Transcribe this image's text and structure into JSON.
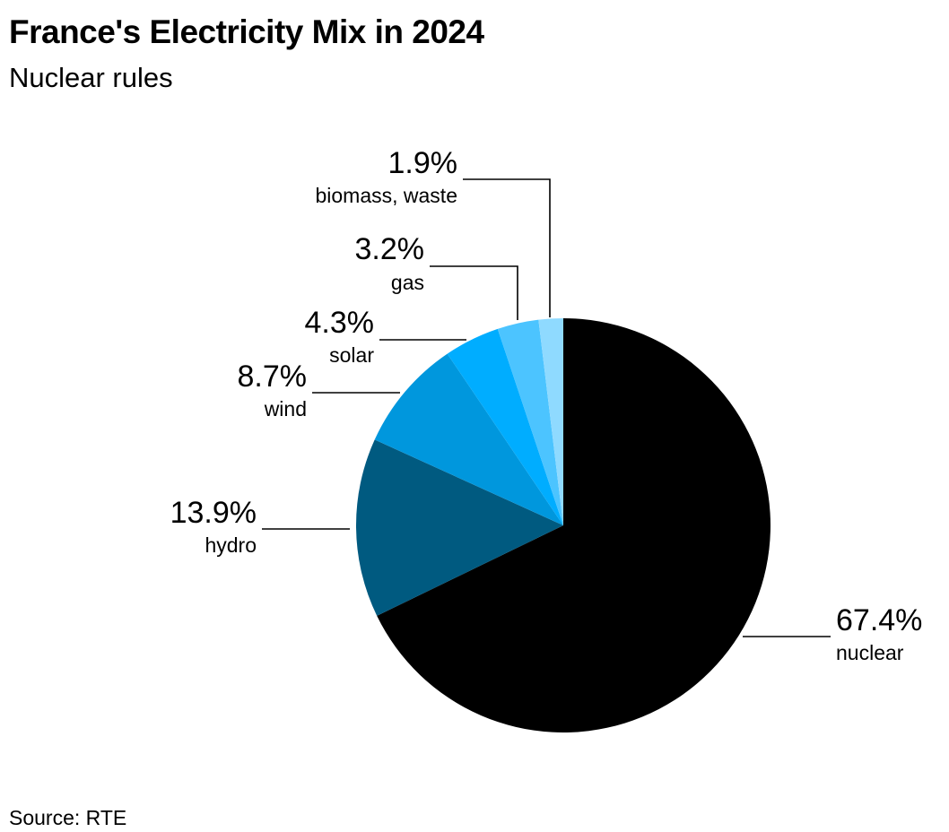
{
  "title": "France's Electricity Mix in 2024",
  "subtitle": "Nuclear rules",
  "source": "Source: RTE",
  "chart_data": {
    "type": "pie",
    "title": "France's Electricity Mix in 2024",
    "subtitle": "Nuclear rules",
    "unit": "%",
    "start_angle": "12 o'clock",
    "direction": "clockwise",
    "slices": [
      {
        "key": "nuclear",
        "label": "nuclear",
        "value": 67.4,
        "display": "67.4%",
        "color": "#000000"
      },
      {
        "key": "hydro",
        "label": "hydro",
        "value": 13.9,
        "display": "13.9%",
        "color": "#005a80"
      },
      {
        "key": "wind",
        "label": "wind",
        "value": 8.7,
        "display": "8.7%",
        "color": "#0097dd"
      },
      {
        "key": "solar",
        "label": "solar",
        "value": 4.3,
        "display": "4.3%",
        "color": "#00adff"
      },
      {
        "key": "gas",
        "label": "gas",
        "value": 3.2,
        "display": "3.2%",
        "color": "#4cc4ff"
      },
      {
        "key": "biomass",
        "label": "biomass, waste",
        "value": 1.9,
        "display": "1.9%",
        "color": "#8fdaff"
      }
    ]
  }
}
